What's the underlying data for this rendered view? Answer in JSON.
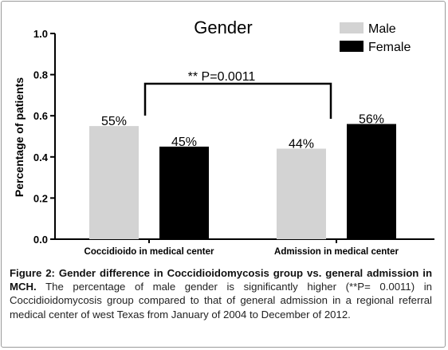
{
  "chart_data": {
    "type": "bar",
    "title": "Gender",
    "ylabel": "Percentage of patients",
    "xlabel": "",
    "ylim": [
      0,
      1.0
    ],
    "yticks": [
      "0.0",
      "0.2",
      "0.4",
      "0.6",
      "0.8",
      "1.0"
    ],
    "categories": [
      "Coccidioido in medical center",
      "Admission in medical center"
    ],
    "series": [
      {
        "name": "Male",
        "color": "#d3d3d3",
        "values": [
          0.55,
          0.44
        ],
        "labels": [
          "55%",
          "44%"
        ]
      },
      {
        "name": "Female",
        "color": "#000000",
        "values": [
          0.45,
          0.56
        ],
        "labels": [
          "45%",
          "56%"
        ]
      }
    ],
    "annotation": "** P=0.0011",
    "legend": "top-right",
    "grid": false
  },
  "caption": {
    "bold": "Figure 2: Gender difference in Coccidioidomycosis group vs. general admission in MCH.",
    "text": " The percentage of male gender is significantly higher (**P= 0.0011) in Coccidioidomycosis group compared to that of general admission in a regional referral medical center of west Texas from January of 2004 to December of 2012."
  }
}
